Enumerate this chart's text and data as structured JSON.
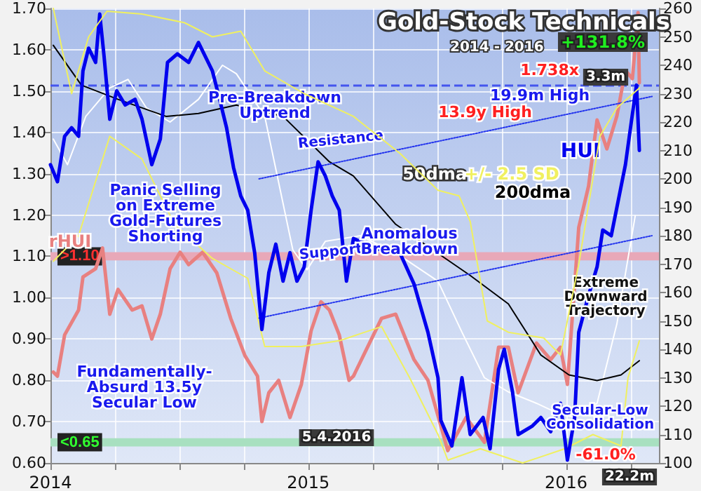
{
  "chart_data": {
    "type": "line",
    "title": "Gold-Stock Technicals",
    "subtitle": "2014 - 2016",
    "xlim": [
      2014,
      2016.36
    ],
    "xticks": [
      2014,
      {
        "value": 2014.25,
        "label": null
      },
      {
        "value": 2014.5,
        "label": null
      },
      {
        "value": 2014.75,
        "label": null
      },
      2015,
      {
        "value": 2015.25,
        "label": null
      },
      {
        "value": 2015.5,
        "label": null
      },
      {
        "value": 2015.75,
        "label": null
      },
      2016,
      {
        "value": 2016.25,
        "label": null
      }
    ],
    "ylim": [
      0.6,
      1.7
    ],
    "yticks": [
      {
        "value": 0.6,
        "label": "0.60"
      },
      {
        "value": 0.7,
        "label": "0.70"
      },
      {
        "value": 0.8,
        "label": "0.80"
      },
      {
        "value": 0.9,
        "label": "0.90"
      },
      {
        "value": 1.0,
        "label": "1.00"
      },
      {
        "value": 1.1,
        "label": "1.10"
      },
      {
        "value": 1.2,
        "label": "1.20"
      },
      {
        "value": 1.3,
        "label": "1.30"
      },
      {
        "value": 1.4,
        "label": "1.40"
      },
      {
        "value": 1.5,
        "label": "1.50"
      },
      {
        "value": 1.6,
        "label": "1.60"
      },
      {
        "value": 1.7,
        "label": "1.70"
      }
    ],
    "y2lim": [
      100,
      260
    ],
    "y2ticks": [
      100,
      110,
      120,
      130,
      140,
      150,
      160,
      170,
      180,
      190,
      200,
      210,
      220,
      230,
      240,
      250,
      260
    ],
    "grid": true,
    "legend": false,
    "marker": "none",
    "series": [
      {
        "name": "HUI",
        "color": "#0000ee",
        "axis": "y2",
        "x": [
          2014.0,
          2014.027,
          2014.055,
          2014.082,
          2014.109,
          2014.126,
          2014.148,
          2014.175,
          2014.191,
          2014.208,
          2014.23,
          2014.257,
          2014.29,
          2014.328,
          2014.355,
          2014.393,
          2014.426,
          2014.454,
          2014.492,
          2014.536,
          2014.574,
          2014.601,
          2014.628,
          2014.656,
          2014.683,
          2014.71,
          2014.738,
          2014.765,
          2014.792,
          2014.82,
          2014.847,
          2014.874,
          2014.902,
          2014.929,
          2014.956,
          2014.984,
          2015.011,
          2015.038,
          2015.066,
          2015.093,
          2015.12,
          2015.148,
          2015.175,
          2015.28,
          2015.355,
          2015.41,
          2015.464,
          2015.503,
          2015.514,
          2015.557,
          2015.596,
          2015.628,
          2015.678,
          2015.705,
          2015.738,
          2015.76,
          2015.792,
          2015.814,
          2015.869,
          2015.902,
          2015.94,
          2015.978,
          2016.005,
          2016.033,
          2016.049,
          2016.087,
          2016.12,
          2016.142,
          2016.175,
          2016.23,
          2016.268,
          2016.273,
          2016.284
        ],
        "values": [
          205,
          199,
          215,
          218,
          215,
          238,
          246,
          241,
          258,
          243,
          221,
          231,
          226,
          228,
          221,
          205,
          214,
          241,
          244,
          241,
          248,
          243,
          238,
          228,
          218,
          204,
          194,
          189,
          174,
          147,
          167,
          177,
          164,
          174,
          164,
          169,
          189,
          206,
          201,
          194,
          189,
          164,
          179,
          175,
          174,
          163,
          146,
          130,
          115,
          106,
          130,
          110,
          116,
          105,
          133,
          140,
          125,
          110,
          113,
          116,
          111,
          121,
          101,
          116,
          146,
          159,
          169,
          182,
          180,
          205,
          230,
          233,
          210
        ]
      },
      {
        "name": "rHUI",
        "color": "#e88080",
        "x": [
          2014.011,
          2014.027,
          2014.055,
          2014.082,
          2014.109,
          2014.126,
          2014.175,
          2014.202,
          2014.23,
          2014.262,
          2014.317,
          2014.355,
          2014.393,
          2014.426,
          2014.464,
          2014.503,
          2014.536,
          2014.59,
          2014.645,
          2014.699,
          2014.754,
          2014.803,
          2014.82,
          2014.847,
          2014.885,
          2014.929,
          2014.973,
          2015.011,
          2015.049,
          2015.082,
          2015.12,
          2015.158,
          2015.175,
          2015.284,
          2015.339,
          2015.41,
          2015.464,
          2015.514,
          2015.541,
          2015.612,
          2015.683,
          2015.738,
          2015.776,
          2015.814,
          2015.885,
          2015.94,
          2015.978,
          2016.005,
          2016.033,
          2016.049,
          2016.087,
          2016.12,
          2016.158,
          2016.197,
          2016.23,
          2016.257,
          2016.279,
          2016.284
        ],
        "values": [
          0.82,
          0.81,
          0.91,
          0.94,
          0.97,
          1.05,
          1.07,
          1.12,
          0.96,
          1.02,
          0.97,
          0.98,
          0.9,
          0.96,
          1.07,
          1.11,
          1.08,
          1.11,
          1.06,
          0.95,
          0.86,
          0.81,
          0.7,
          0.77,
          0.8,
          0.71,
          0.79,
          0.92,
          0.99,
          0.97,
          0.91,
          0.8,
          0.81,
          0.95,
          0.96,
          0.85,
          0.8,
          0.69,
          0.63,
          0.71,
          0.65,
          0.88,
          0.88,
          0.77,
          0.89,
          0.85,
          0.88,
          0.79,
          1.03,
          1.17,
          1.27,
          1.43,
          1.36,
          1.44,
          1.55,
          1.53,
          1.69,
          1.52
        ]
      },
      {
        "name": "50dma",
        "color": "#ffffff",
        "axis": "y2",
        "x": [
          2014.011,
          2014.066,
          2014.137,
          2014.23,
          2014.301,
          2014.372,
          2014.464,
          2014.574,
          2014.667,
          2014.721,
          2014.831,
          2014.94,
          2014.995,
          2015.066,
          2015.202,
          2015.355,
          2015.503,
          2015.596,
          2015.683,
          2015.776,
          2015.885,
          2015.956,
          2016.033,
          2016.12,
          2016.197,
          2016.268
        ],
        "values": [
          214,
          205,
          222,
          232,
          235,
          225,
          220,
          228,
          240,
          237,
          222,
          175,
          168,
          178,
          180,
          173,
          164,
          146,
          130,
          125,
          121,
          118,
          116,
          121,
          149,
          187
        ]
      },
      {
        "name": "200dma",
        "color": "#000000",
        "axis": "y2",
        "x": [
          2014.011,
          2014.12,
          2014.262,
          2014.448,
          2014.574,
          2014.721,
          2014.902,
          2015.082,
          2015.175,
          2015.339,
          2015.628,
          2015.776,
          2015.902,
          2016.011,
          2016.12,
          2016.213,
          2016.284
        ],
        "values": [
          247,
          233,
          228,
          222,
          223,
          226,
          222,
          206,
          201,
          184,
          166,
          156,
          138,
          131,
          129,
          131,
          136
        ]
      },
      {
        "name": "+/- 2.5 SD",
        "color": "#f0f060",
        "axis": "y2",
        "x": [
          2014.011,
          2014.082,
          2014.148,
          2014.219,
          2014.355,
          2014.519,
          2014.628,
          2014.738,
          2014.831,
          2014.984,
          2015.175,
          2015.355,
          2015.503,
          2015.585,
          2015.628,
          2015.694,
          2015.776,
          2015.913,
          2015.978,
          2016.049,
          2016.131,
          2016.197,
          2016.284
        ],
        "values": [
          260,
          230,
          250,
          259,
          258,
          255,
          250,
          252,
          238,
          230,
          222,
          209,
          196,
          194,
          185,
          150,
          146,
          144,
          138,
          170,
          215,
          225,
          232
        ]
      },
      {
        "color": "#f0f060",
        "axis": "y2",
        "x": [
          2014.011,
          2014.109,
          2014.23,
          2014.355,
          2014.481,
          2014.628,
          2014.765,
          2014.831,
          2014.973,
          2015.12,
          2015.284,
          2015.393,
          2015.503,
          2015.541,
          2015.667,
          2015.831,
          2015.995,
          2016.104,
          2016.213,
          2016.24,
          2016.284
        ],
        "values": [
          171,
          180,
          215,
          207,
          184,
          172,
          165,
          141,
          141,
          143,
          148,
          130,
          110,
          101,
          105,
          100,
          105,
          110,
          106,
          130,
          143
        ]
      },
      {
        "color": "#2233ee",
        "axis": "y2",
        "line_style": "dotted",
        "x": [
          2014.809,
          2016.333
        ],
        "values": [
          200,
          229
        ]
      },
      {
        "color": "#2233ee",
        "axis": "y2",
        "line_style": "dotted",
        "x": [
          2014.809,
          2016.333
        ],
        "values": [
          151,
          180
        ]
      }
    ],
    "ref_lines": [
      {
        "axis": "y2",
        "value": 233,
        "line_style": "dashed",
        "color": "#4455ee"
      }
    ],
    "bands": [
      {
        "axis": "y",
        "from": 1.09,
        "to": 1.11,
        "label": ">1.10",
        "color": "#e8a8b8"
      },
      {
        "axis": "y",
        "from": 0.64,
        "to": 0.66,
        "label": "<0.65",
        "color": "#a8e0c0"
      }
    ],
    "annotations": [
      "Pre-Breakdown\nUptrend",
      "Resistance",
      "Support",
      "Panic Selling\non Extreme\nGold-Futures\nShorting",
      "Anomalous\nBreakdown",
      "Fundamentally-\nAbsurd 13.5y\nSecular Low",
      "Extreme\nDownward\nTrajectory",
      "Secular-Low\nConsolidation",
      "13.9y High",
      "1.738x",
      "19.9m High",
      "+131.8%",
      "3.3m",
      "-61.0%",
      "22.2m",
      "5.4.2016"
    ]
  }
}
